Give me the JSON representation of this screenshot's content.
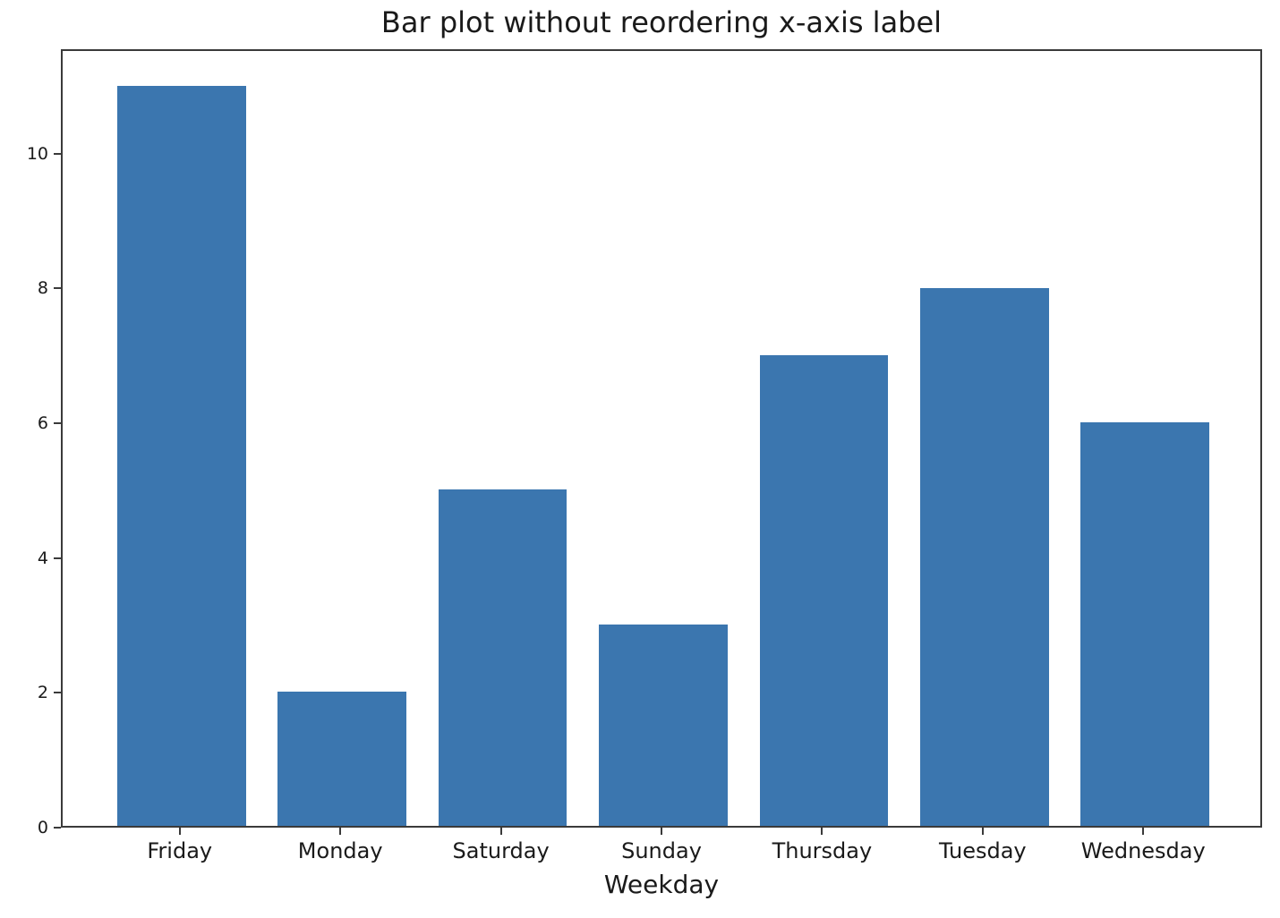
{
  "figure": {
    "background_color": "#ffffff",
    "text_color": "#1a1a1a",
    "axis_color": "#3a3a3a"
  },
  "chart_data": {
    "type": "bar",
    "title": "Bar plot without reordering x-axis label",
    "xlabel": "Weekday",
    "ylabel": "",
    "categories": [
      "Friday",
      "Monday",
      "Saturday",
      "Sunday",
      "Thursday",
      "Tuesday",
      "Wednesday"
    ],
    "values": [
      11,
      2,
      5,
      3,
      7,
      8,
      6
    ],
    "yticks": [
      0,
      2,
      4,
      6,
      8,
      10
    ],
    "ylim": [
      0,
      11.55
    ],
    "bar_color": "#3b76af",
    "bar_width_fraction": 0.8,
    "grid": false,
    "legend_position": "none"
  }
}
